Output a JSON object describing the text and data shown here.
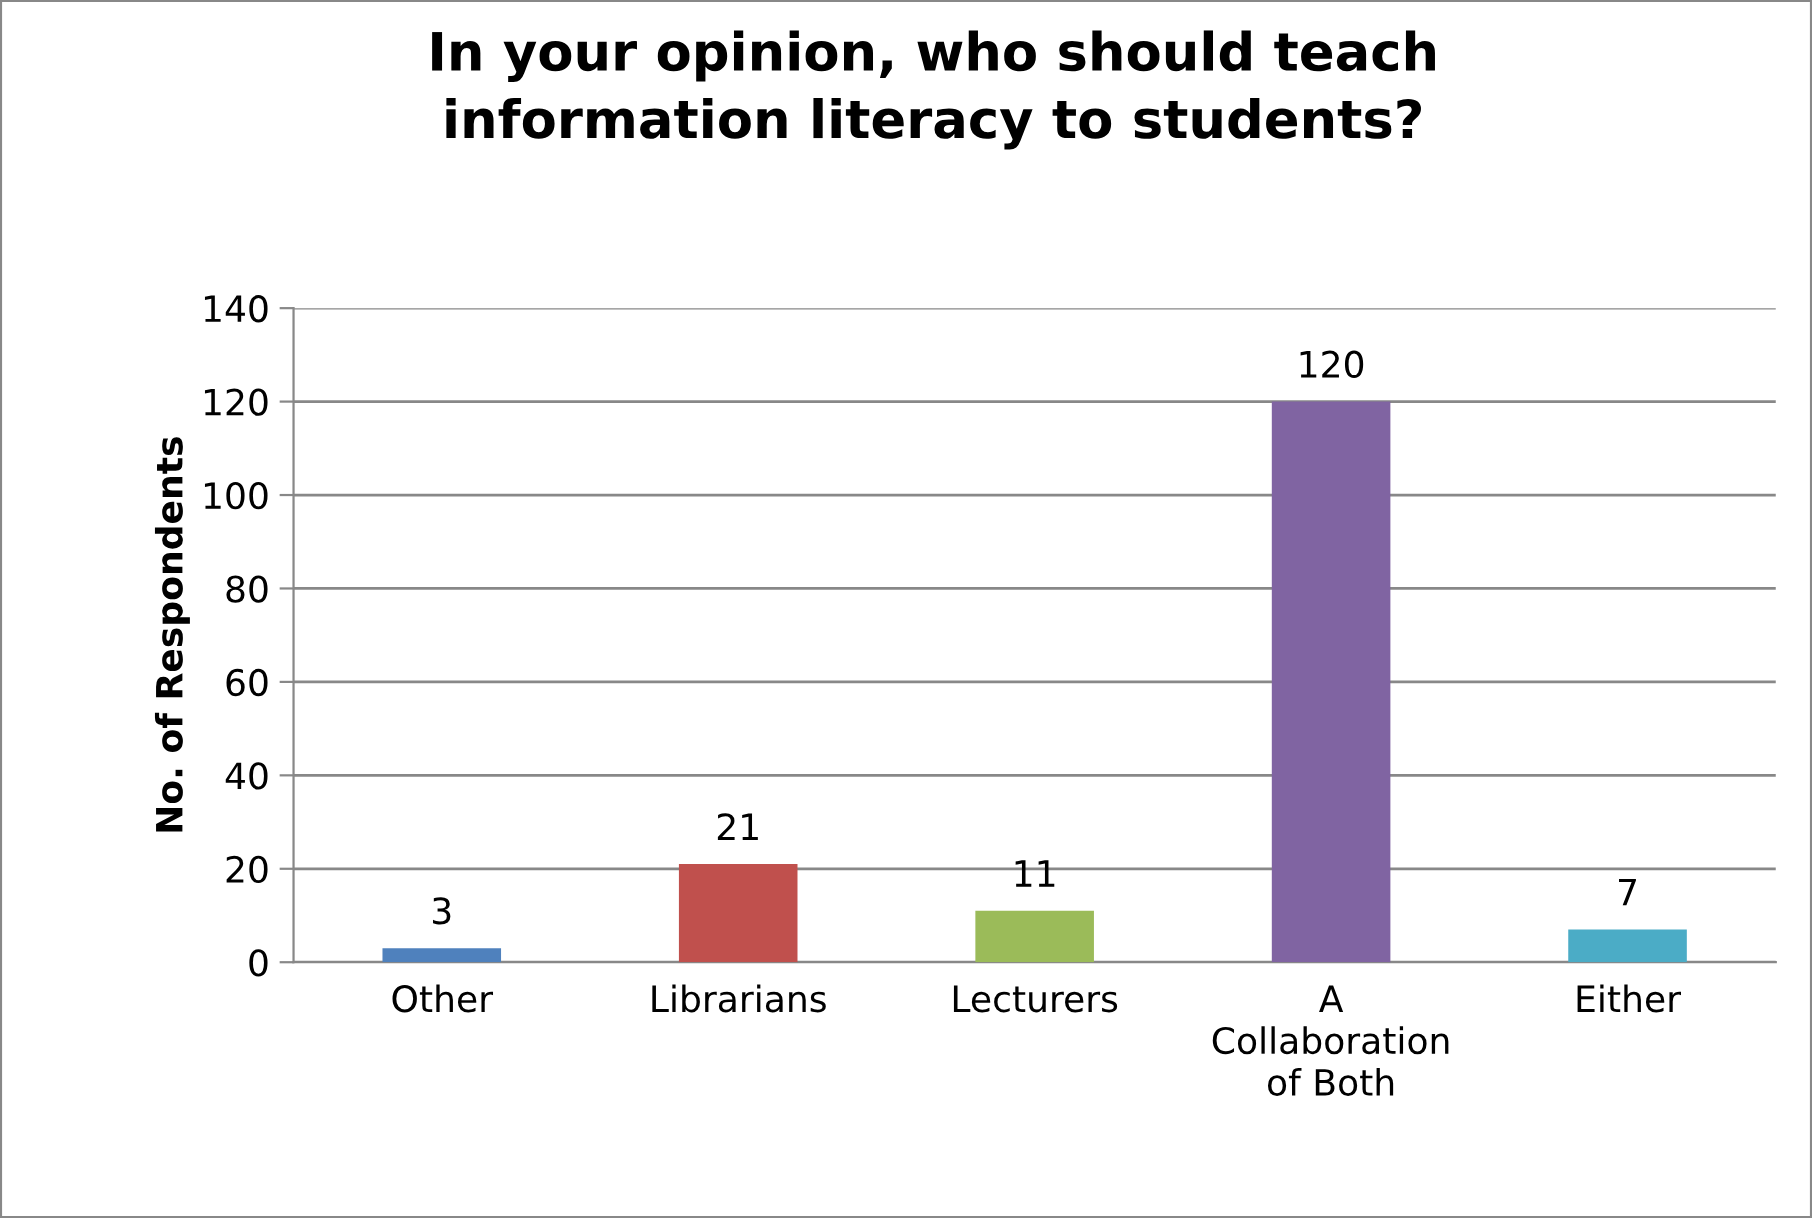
{
  "chart_data": {
    "type": "bar",
    "title": "In your opinion, who should teach\ninformation literacy to students?",
    "ylabel": "No. of Respondents",
    "categories": [
      "Other",
      "Librarians",
      "Lecturers",
      "A\nCollaboration\nof Both",
      "Either"
    ],
    "values": [
      3,
      21,
      11,
      120,
      7
    ],
    "colors": [
      "#4f81bd",
      "#c0504d",
      "#9bbb59",
      "#8064a2",
      "#4bacc6"
    ],
    "ylim": [
      0,
      140
    ],
    "yticks": [
      0,
      20,
      40,
      60,
      80,
      100,
      120,
      140
    ],
    "grid": "y",
    "data_labels": true
  }
}
